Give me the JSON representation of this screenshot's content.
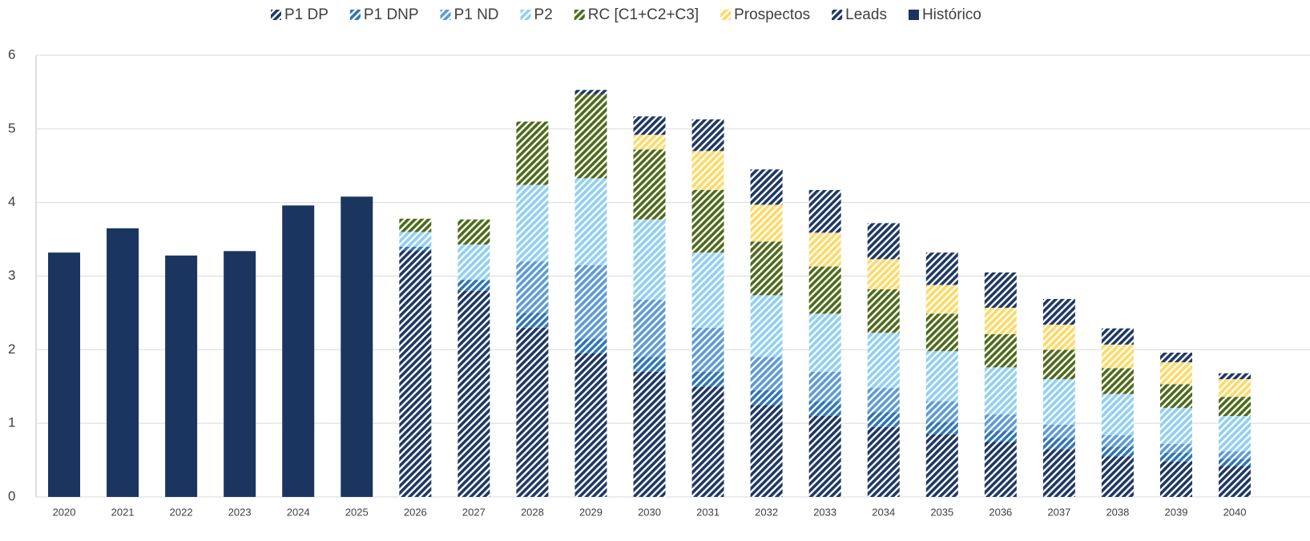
{
  "chart_data": {
    "type": "stacked_bar",
    "categories": [
      "2020",
      "2021",
      "2022",
      "2023",
      "2024",
      "2025",
      "2026",
      "2027",
      "2028",
      "2029",
      "2030",
      "2031",
      "2032",
      "2033",
      "2034",
      "2035",
      "2036",
      "2037",
      "2038",
      "2039",
      "2040"
    ],
    "series": [
      {
        "name": "P1 DP",
        "color": "#1f3864",
        "hatched": true,
        "values": [
          null,
          null,
          null,
          null,
          null,
          null,
          3.35,
          2.8,
          2.3,
          1.95,
          1.7,
          1.5,
          1.25,
          1.1,
          0.95,
          0.85,
          0.75,
          0.65,
          0.55,
          0.48,
          0.42
        ]
      },
      {
        "name": "P1 DNP",
        "color": "#2e75b6",
        "hatched": true,
        "values": [
          null,
          null,
          null,
          null,
          null,
          null,
          0.05,
          0.15,
          0.2,
          0.2,
          0.2,
          0.2,
          0.2,
          0.2,
          0.2,
          0.17,
          0.15,
          0.15,
          0.13,
          0.12,
          0.1
        ]
      },
      {
        "name": "P1 ND",
        "color": "#5b9bd5",
        "hatched": true,
        "values": [
          null,
          null,
          null,
          null,
          null,
          null,
          0,
          0,
          0.7,
          1.0,
          0.78,
          0.6,
          0.45,
          0.4,
          0.33,
          0.28,
          0.22,
          0.18,
          0.16,
          0.12,
          0.1
        ]
      },
      {
        "name": "P2",
        "color": "#8fd0f2",
        "hatched": true,
        "values": [
          null,
          null,
          null,
          null,
          null,
          null,
          0.2,
          0.48,
          1.04,
          1.18,
          1.09,
          1.02,
          0.84,
          0.79,
          0.75,
          0.68,
          0.64,
          0.62,
          0.56,
          0.49,
          0.48
        ]
      },
      {
        "name": "RC [C1+C2+C3]",
        "color": "#4e6b1a",
        "hatched": true,
        "values": [
          null,
          null,
          null,
          null,
          null,
          null,
          0.18,
          0.34,
          0.86,
          1.14,
          0.95,
          0.85,
          0.73,
          0.64,
          0.59,
          0.51,
          0.45,
          0.4,
          0.35,
          0.32,
          0.26
        ]
      },
      {
        "name": "Prospectos",
        "color": "#ffd966",
        "hatched": true,
        "values": [
          null,
          null,
          null,
          null,
          null,
          null,
          0,
          0,
          0,
          0,
          0.2,
          0.53,
          0.5,
          0.46,
          0.41,
          0.39,
          0.36,
          0.34,
          0.32,
          0.3,
          0.24
        ]
      },
      {
        "name": "Leads",
        "color": "#1f3864",
        "hatched": true,
        "values": [
          null,
          null,
          null,
          null,
          null,
          null,
          0,
          0,
          0,
          0.06,
          0.25,
          0.43,
          0.48,
          0.58,
          0.49,
          0.44,
          0.48,
          0.35,
          0.22,
          0.13,
          0.08
        ]
      },
      {
        "name": "Histórico",
        "color": "#1a3660",
        "hatched": false,
        "values": [
          3.32,
          3.65,
          3.28,
          3.34,
          3.96,
          4.08,
          null,
          null,
          null,
          null,
          null,
          null,
          null,
          null,
          null,
          null,
          null,
          null,
          null,
          null,
          null
        ]
      }
    ],
    "ylim": [
      0,
      6
    ],
    "yticks": [
      0,
      1,
      2,
      3,
      4,
      5,
      6
    ],
    "grid": true,
    "legend": "top"
  }
}
